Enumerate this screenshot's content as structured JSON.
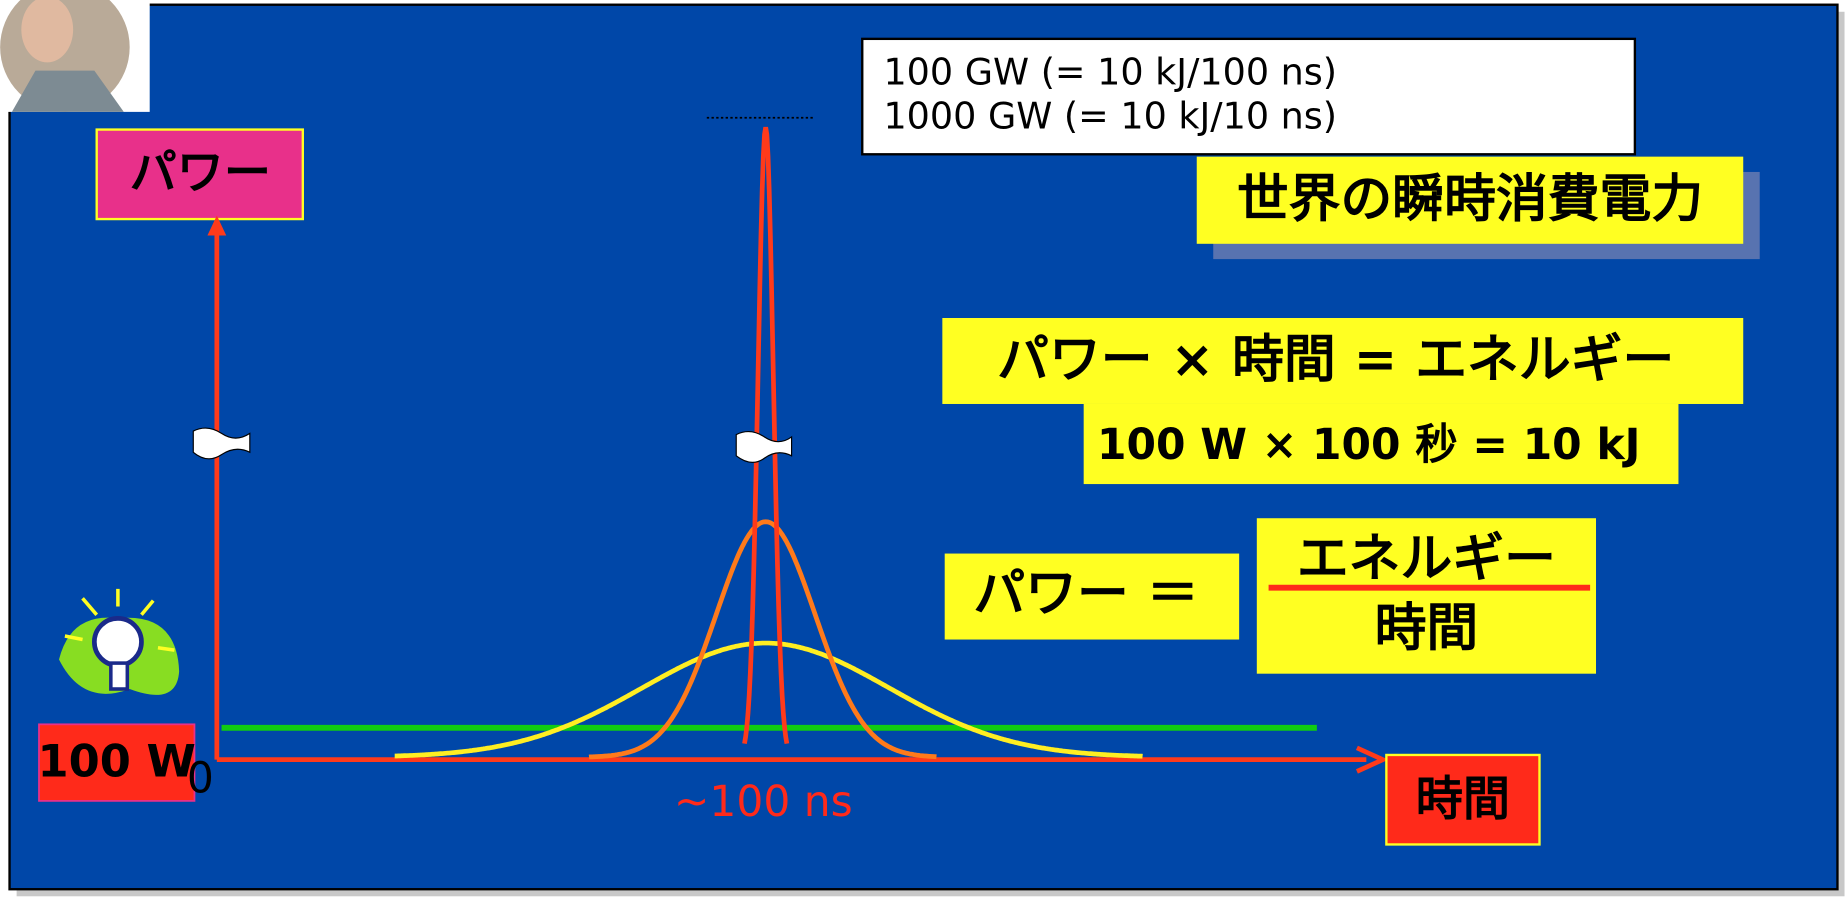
{
  "info_box": {
    "line1": "100 GW (= 10 kJ/100 ns)",
    "line2": "1000 GW (= 10 kJ/10 ns)"
  },
  "world_power": "世界の瞬時消費電力",
  "y_axis_label": "パワー",
  "x_axis_label": "時間",
  "baseline_label": "100 W",
  "origin_label": "0",
  "pulse_label": "~100 ns",
  "equation": {
    "main": "パワー × 時間 = エネルギー",
    "example": "100 W × 100 秒 = 10 kJ"
  },
  "formula": {
    "lhs": "パワー ＝",
    "numerator": "エネルギー",
    "denominator": "時間"
  }
}
